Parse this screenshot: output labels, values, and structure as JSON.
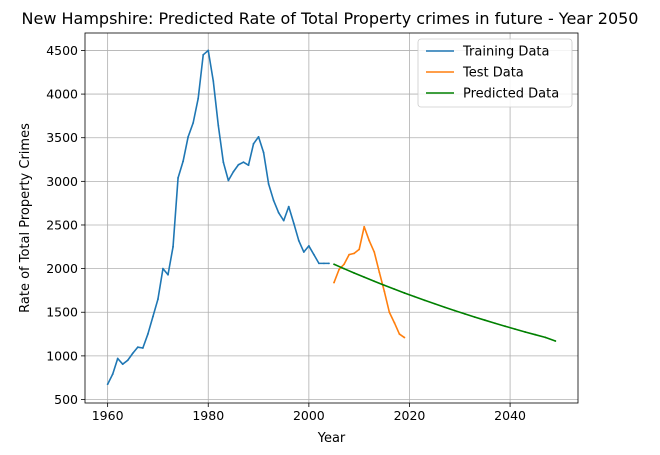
{
  "chart_data": {
    "type": "line",
    "title": "New Hampshire: Predicted Rate of Total Property crimes in future - Year 2050",
    "xlabel": "Year",
    "ylabel": "Rate of Total Property Crimes",
    "xlim": [
      1955.5,
      2053.5
    ],
    "ylim": [
      460,
      4700
    ],
    "x_ticks": [
      1960,
      1980,
      2000,
      2020,
      2040
    ],
    "y_ticks": [
      500,
      1000,
      1500,
      2000,
      2500,
      3000,
      3500,
      4000,
      4500
    ],
    "grid": true,
    "legend_position": "top-right",
    "series": [
      {
        "name": "Training Data",
        "color": "#1f77b4",
        "x": [
          1960,
          1961,
          1962,
          1963,
          1964,
          1965,
          1966,
          1967,
          1968,
          1969,
          1970,
          1971,
          1972,
          1973,
          1974,
          1975,
          1976,
          1977,
          1978,
          1979,
          1980,
          1981,
          1982,
          1983,
          1984,
          1985,
          1986,
          1987,
          1988,
          1989,
          1990,
          1991,
          1992,
          1993,
          1994,
          1995,
          1996,
          1997,
          1998,
          1999,
          2000,
          2001,
          2002,
          2003,
          2004
        ],
        "y": [
          675,
          790,
          970,
          905,
          950,
          1030,
          1100,
          1090,
          1250,
          1450,
          1650,
          2000,
          1930,
          2250,
          3040,
          3230,
          3510,
          3670,
          3950,
          4450,
          4500,
          4150,
          3640,
          3220,
          3010,
          3110,
          3190,
          3220,
          3185,
          3430,
          3510,
          3330,
          2970,
          2780,
          2640,
          2550,
          2710,
          2520,
          2320,
          2190,
          2260,
          2160,
          2060,
          2060,
          2060
        ]
      },
      {
        "name": "Test Data",
        "color": "#ff7f0e",
        "x": [
          2005,
          2006,
          2007,
          2008,
          2009,
          2010,
          2011,
          2012,
          2013,
          2014,
          2015,
          2016,
          2017,
          2018,
          2019
        ],
        "y": [
          1840,
          1990,
          2050,
          2160,
          2175,
          2220,
          2480,
          2320,
          2190,
          1960,
          1740,
          1500,
          1380,
          1250,
          1210
        ]
      },
      {
        "name": "Predicted Data",
        "color": "#008000",
        "x": [
          2005,
          2007,
          2009,
          2011,
          2013,
          2015,
          2017,
          2019,
          2021,
          2023,
          2025,
          2027,
          2029,
          2031,
          2033,
          2035,
          2037,
          2039,
          2041,
          2043,
          2045,
          2047,
          2049
        ],
        "y": [
          2050,
          1999,
          1950,
          1902,
          1855,
          1809,
          1765,
          1721,
          1679,
          1637,
          1597,
          1557,
          1519,
          1481,
          1444,
          1409,
          1374,
          1340,
          1307,
          1274,
          1243,
          1212,
          1170
        ]
      }
    ]
  }
}
